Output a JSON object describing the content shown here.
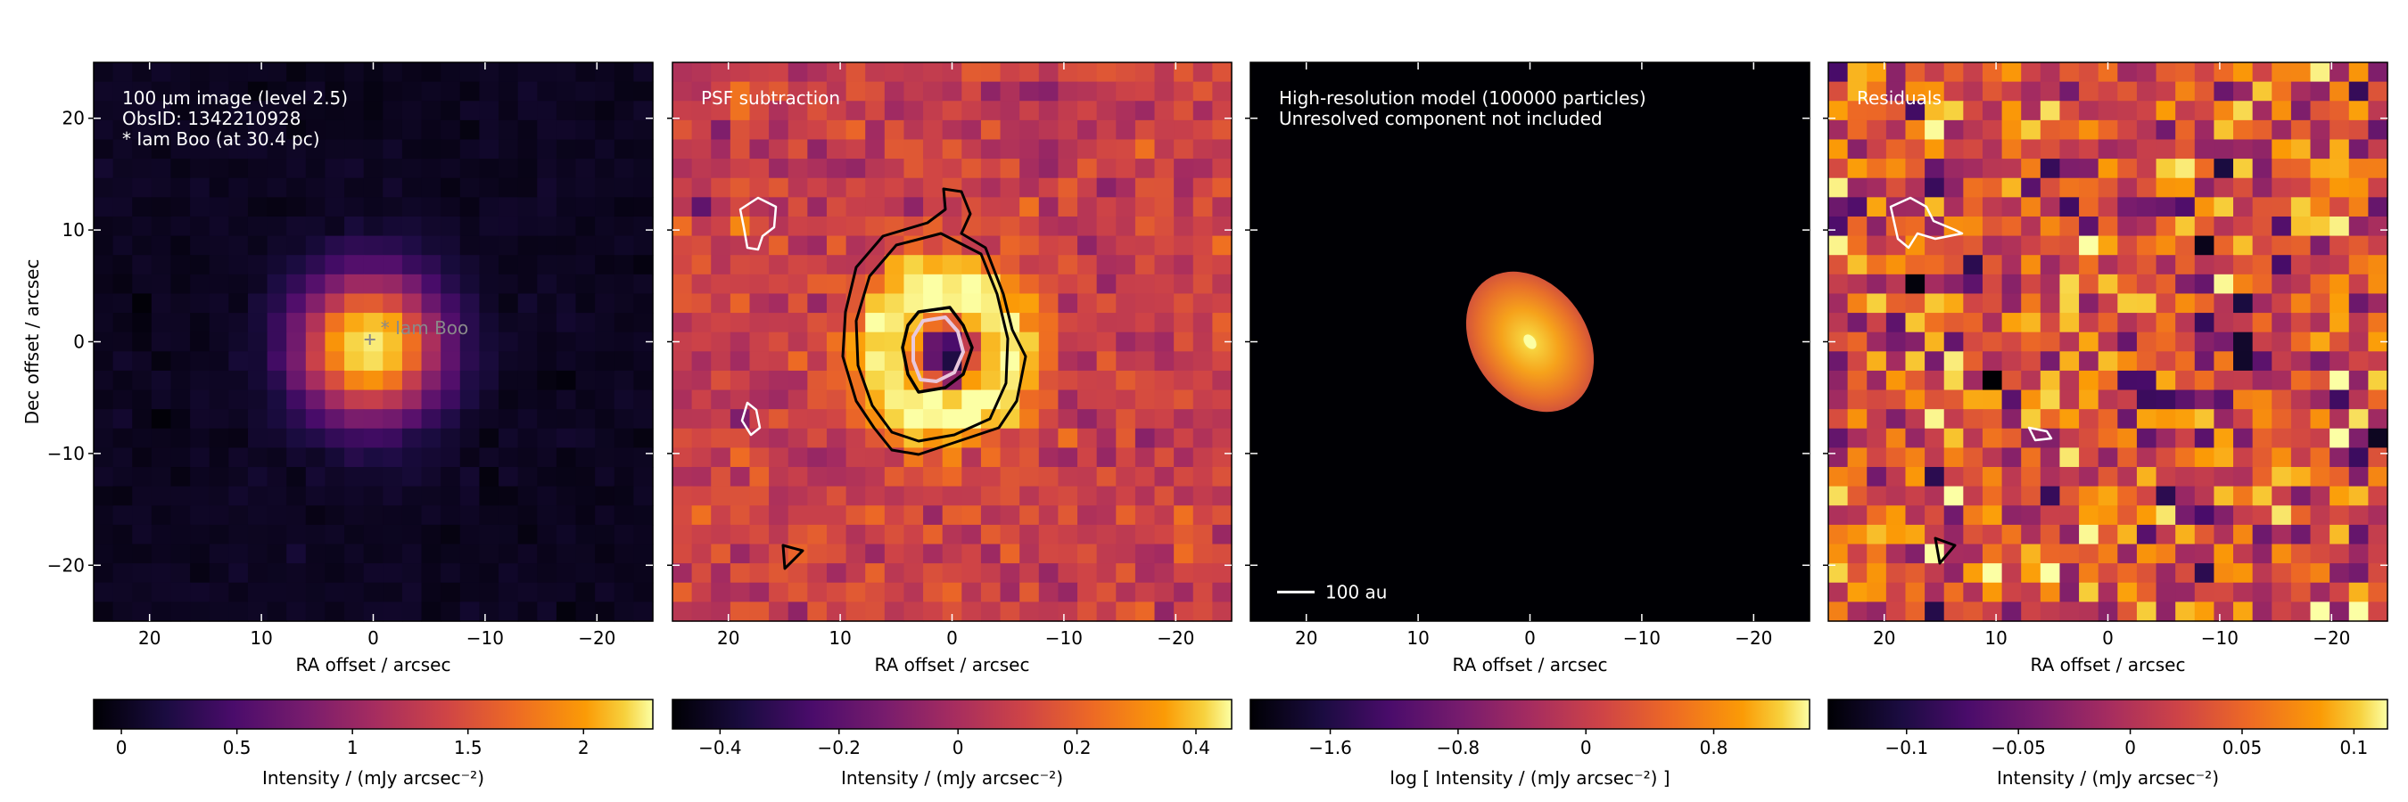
{
  "figure": {
    "panels": [
      {
        "id": "image",
        "annotation_lines": [
          "100 µm image (level 2.5)",
          "ObsID: 1342210928",
          "* Iam Boo (at 30.4 pc)"
        ],
        "star_label": "Iam Boo",
        "ylabel": "Dec offset / arcsec",
        "xlabel": "RA offset / arcsec",
        "colorbar_label": "Intensity / (mJy arcsec⁻²)",
        "colorbar_ticks": [
          "0",
          "0.5",
          "1",
          "1.5",
          "2"
        ],
        "colorbar_tick_values": [
          0,
          0.5,
          1,
          1.5,
          2
        ],
        "colorbar_range": [
          -0.12,
          2.3
        ]
      },
      {
        "id": "psf-subtraction",
        "annotation_lines": [
          "PSF subtraction"
        ],
        "xlabel": "RA offset / arcsec",
        "colorbar_label": "Intensity / (mJy arcsec⁻²)",
        "colorbar_ticks": [
          "−0.4",
          "−0.2",
          "0",
          "0.2",
          "0.4"
        ],
        "colorbar_tick_values": [
          -0.4,
          -0.2,
          0,
          0.2,
          0.4
        ],
        "colorbar_range": [
          -0.48,
          0.46
        ]
      },
      {
        "id": "model",
        "annotation_lines": [
          "High-resolution model (100000 particles)",
          "Unresolved component not included"
        ],
        "scale_bar_label": "100 au",
        "xlabel": "RA offset / arcsec",
        "colorbar_label": "log [ Intensity / (mJy arcsec⁻²) ]",
        "colorbar_ticks": [
          "−1.6",
          "−0.8",
          "0",
          "0.8"
        ],
        "colorbar_tick_values": [
          -1.6,
          -0.8,
          0,
          0.8
        ],
        "colorbar_range": [
          -2.1,
          1.4
        ]
      },
      {
        "id": "residuals",
        "annotation_lines": [
          "Residuals"
        ],
        "xlabel": "RA offset / arcsec",
        "colorbar_label": "Intensity / (mJy arcsec⁻²)",
        "colorbar_ticks": [
          "−0.1",
          "−0.05",
          "0",
          "0.05",
          "0.1"
        ],
        "colorbar_tick_values": [
          -0.1,
          -0.05,
          0,
          0.05,
          0.1
        ],
        "colorbar_range": [
          -0.135,
          0.115
        ]
      }
    ]
  },
  "chart_data": [
    {
      "type": "heatmap",
      "panel": "image",
      "xlim": [
        25,
        -25
      ],
      "ylim": [
        -25,
        25
      ],
      "xticks": [
        20,
        10,
        0,
        -10,
        -20
      ],
      "yticks": [
        -20,
        -10,
        0,
        10,
        20
      ],
      "xlabel": "RA offset / arcsec",
      "ylabel": "Dec offset / arcsec",
      "colormap": "inferno",
      "peak_intensity": 2.2,
      "source_position": [
        0,
        0
      ]
    },
    {
      "type": "heatmap",
      "panel": "psf-subtraction",
      "xlim": [
        25,
        -25
      ],
      "ylim": [
        -25,
        25
      ],
      "xticks": [
        20,
        10,
        0,
        -10,
        -20
      ],
      "yticks": [
        -20,
        -10,
        0,
        10,
        20
      ],
      "xlabel": "RA offset / arcsec",
      "colormap": "inferno",
      "contours": "black positive, white negative"
    },
    {
      "type": "heatmap",
      "panel": "model",
      "xlim": [
        25,
        -25
      ],
      "ylim": [
        -25,
        25
      ],
      "xticks": [
        20,
        10,
        0,
        -10,
        -20
      ],
      "yticks": [
        -20,
        -10,
        0,
        10,
        20
      ],
      "xlabel": "RA offset / arcsec",
      "colormap": "inferno"
    },
    {
      "type": "heatmap",
      "panel": "residuals",
      "xlim": [
        25,
        -25
      ],
      "ylim": [
        -25,
        25
      ],
      "xticks": [
        20,
        10,
        0,
        -10,
        -20
      ],
      "yticks": [
        -20,
        -10,
        0,
        10,
        20
      ],
      "xlabel": "RA offset / arcsec",
      "colormap": "inferno",
      "contours": "black positive, white negative"
    }
  ]
}
